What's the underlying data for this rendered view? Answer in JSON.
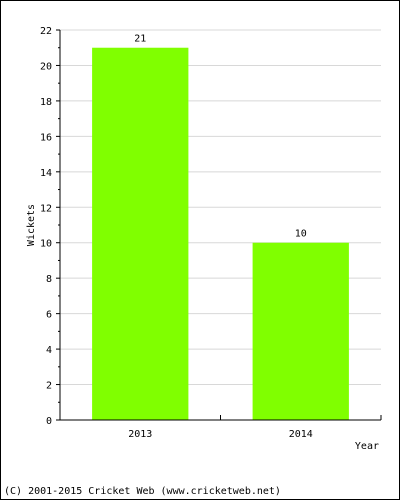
{
  "chart_data": {
    "type": "bar",
    "categories": [
      "2013",
      "2014"
    ],
    "values": [
      21,
      10
    ],
    "data_labels": [
      "21",
      "10"
    ],
    "title": "",
    "xlabel": "Year",
    "ylabel": "Wickets",
    "ylim": [
      0,
      22
    ],
    "y_ticks": [
      0,
      2,
      4,
      6,
      8,
      10,
      12,
      14,
      16,
      18,
      20,
      22
    ],
    "grid": true,
    "bar_color": "#80ff00"
  },
  "footer": {
    "copyright": "(C) 2001-2015 Cricket Web (www.cricketweb.net)"
  }
}
